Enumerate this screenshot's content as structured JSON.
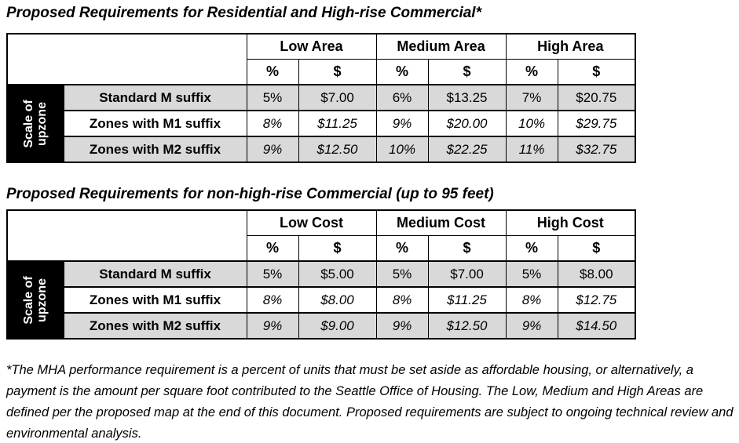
{
  "tables": [
    {
      "title": "Proposed Requirements for Residential and High-rise Commercial*",
      "side_label_line1": "Scale of",
      "side_label_line2": "upzone",
      "groups": [
        "Low Area",
        "Medium Area",
        "High Area"
      ],
      "subheaders": [
        "%",
        "$",
        "%",
        "$",
        "%",
        "$"
      ],
      "rows": [
        {
          "label": "Standard M suffix",
          "cells": [
            "5%",
            "$7.00",
            "6%",
            "$13.25",
            "7%",
            "$20.75"
          ]
        },
        {
          "label": "Zones with M1 suffix",
          "cells": [
            "8%",
            "$11.25",
            "9%",
            "$20.00",
            "10%",
            "$29.75"
          ]
        },
        {
          "label": "Zones with M2 suffix",
          "cells": [
            "9%",
            "$12.50",
            "10%",
            "$22.25",
            "11%",
            "$32.75"
          ]
        }
      ]
    },
    {
      "title": "Proposed Requirements for non-high-rise Commercial (up to 95 feet)",
      "side_label_line1": "Scale of",
      "side_label_line2": "upzone",
      "groups": [
        "Low Cost",
        "Medium Cost",
        "High Cost"
      ],
      "subheaders": [
        "%",
        "$",
        "%",
        "$",
        "%",
        "$"
      ],
      "rows": [
        {
          "label": "Standard M suffix",
          "cells": [
            "5%",
            "$5.00",
            "5%",
            "$7.00",
            "5%",
            "$8.00"
          ]
        },
        {
          "label": "Zones with M1 suffix",
          "cells": [
            "8%",
            "$8.00",
            "8%",
            "$11.25",
            "8%",
            "$12.75"
          ]
        },
        {
          "label": "Zones with M2 suffix",
          "cells": [
            "9%",
            "$9.00",
            "9%",
            "$12.50",
            "9%",
            "$14.50"
          ]
        }
      ]
    }
  ],
  "footnote": "*The MHA performance requirement is a percent of units that must be set aside as affordable housing, or alternatively, a payment is the amount per square foot contributed to the Seattle Office of Housing.  The Low, Medium and High Areas are defined per the proposed map at the end of this document. Proposed requirements are subject to ongoing technical review and environmental analysis.",
  "colors": {
    "row_shade": "#d9d9d9",
    "side_cell_bg": "#000000",
    "border": "#000000",
    "side_cell_text": "#ffffff"
  }
}
